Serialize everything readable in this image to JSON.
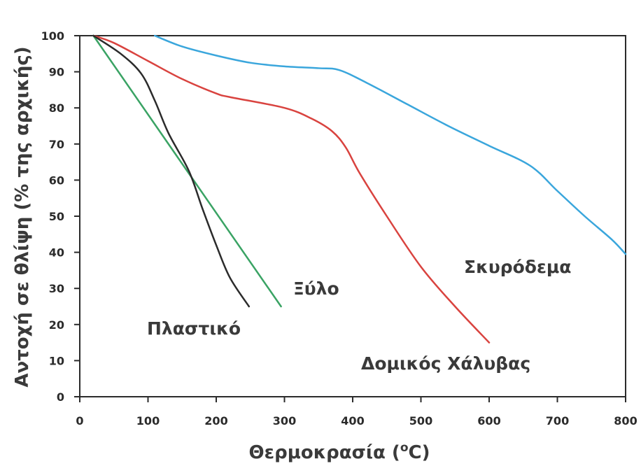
{
  "chart_data": {
    "type": "line",
    "xlabel": "Θερμοκρασία (",
    "xlabel_sup": "o",
    "xlabel_end": "C)",
    "ylabel": "Αντοχή σε θλίψη (% της αρχικής)",
    "xlim": [
      0,
      800
    ],
    "ylim": [
      0,
      100
    ],
    "x_ticks": [
      0,
      100,
      200,
      300,
      400,
      500,
      600,
      700,
      800
    ],
    "y_ticks": [
      0,
      10,
      20,
      30,
      40,
      50,
      60,
      70,
      80,
      90,
      100
    ],
    "grid": false,
    "series": [
      {
        "name": "Σκυρόδεμα",
        "color": "#3aa6dc",
        "x": [
          110,
          150,
          200,
          250,
          300,
          350,
          380,
          420,
          480,
          540,
          600,
          660,
          700,
          740,
          780,
          800
        ],
        "y": [
          100,
          97,
          94.5,
          92.5,
          91.5,
          91,
          90.5,
          87,
          81,
          75,
          69.5,
          64,
          57,
          50,
          43.5,
          39.5
        ]
      },
      {
        "name": "Δομικός Χάλυβας",
        "color": "#d9433f",
        "x": [
          20,
          50,
          100,
          150,
          200,
          220,
          300,
          340,
          370,
          390,
          410,
          450,
          500,
          550,
          600
        ],
        "y": [
          100,
          98,
          93,
          88,
          84,
          83,
          80,
          77,
          73.5,
          69,
          62,
          50,
          36,
          25,
          15
        ]
      },
      {
        "name": "Ξύλο",
        "color": "#3aa364",
        "x": [
          20,
          295
        ],
        "y": [
          100,
          25
        ]
      },
      {
        "name": "Πλαστικό",
        "color": "#2b2b2b",
        "x": [
          20,
          60,
          90,
          110,
          130,
          160,
          180,
          200,
          220,
          248
        ],
        "y": [
          100,
          95,
          89.5,
          82,
          73,
          62.5,
          52,
          42,
          33,
          25
        ]
      }
    ]
  }
}
